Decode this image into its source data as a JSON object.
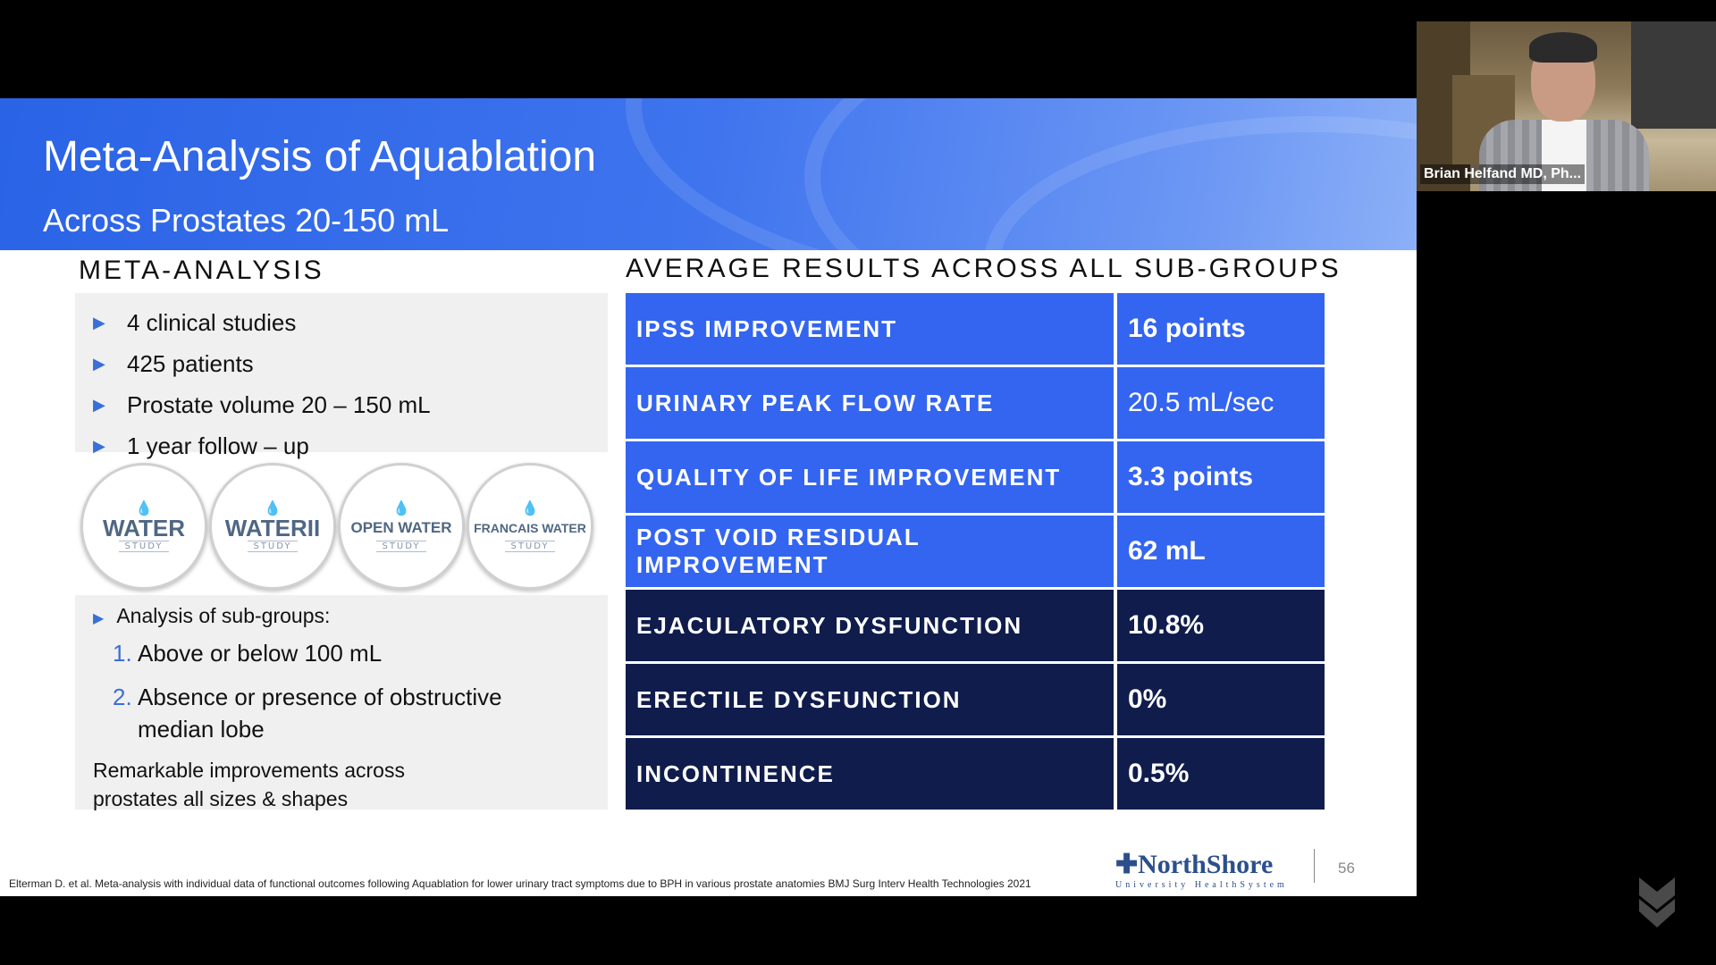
{
  "slide": {
    "title": "Meta-Analysis of Aquablation",
    "subtitle": "Across Prostates 20-150 mL",
    "left_heading": "META-ANALYSIS",
    "right_heading": "AVERAGE RESULTS ACROSS ALL SUB-GROUPS",
    "bullets": [
      "4 clinical studies",
      "425 patients",
      "Prostate volume 20 – 150 mL",
      "1 year follow – up"
    ],
    "logos": [
      {
        "name": "WATER",
        "study": "STUDY"
      },
      {
        "name": "WATERII",
        "study": "STUDY"
      },
      {
        "name": "OPEN WATER",
        "study": "STUDY"
      },
      {
        "name": "FRANCAIS WATER",
        "study": "STUDY"
      }
    ],
    "subgroups": {
      "intro": "Analysis of sub-groups:",
      "items": [
        {
          "num": "1.",
          "text": "Above or below 100 mL"
        },
        {
          "num": "2.",
          "text": "Absence or presence of obstructive median lobe"
        }
      ],
      "conclusion": "Remarkable improvements across prostates all sizes & shapes"
    },
    "results": [
      {
        "label": "IPSS IMPROVEMENT",
        "value": "16 points",
        "color": "#3465f0"
      },
      {
        "label": "URINARY PEAK FLOW RATE",
        "value": "20.5 mL/sec",
        "color": "#3465f0"
      },
      {
        "label": "QUALITY OF LIFE IMPROVEMENT",
        "value": "3.3 points",
        "color": "#3465f0"
      },
      {
        "label": "POST VOID RESIDUAL IMPROVEMENT",
        "value": "62 mL",
        "color": "#3465f0"
      },
      {
        "label": "EJACULATORY DYSFUNCTION",
        "value": "10.8%",
        "color": "#0f1c4c"
      },
      {
        "label": "ERECTILE DYSFUNCTION",
        "value": "0%",
        "color": "#0f1c4c"
      },
      {
        "label": "INCONTINENCE",
        "value": "0.5%",
        "color": "#0f1c4c"
      }
    ],
    "footnote": "Elterman D. et al. Meta-analysis with individual data of functional outcomes following Aquablation for lower urinary tract symptoms due to BPH in various prostate anatomies BMJ Surg Interv Health Technologies 2021",
    "brand_name": "NorthShore",
    "brand_sub": "University HealthSystem",
    "page_number": "56"
  },
  "participant": {
    "name": "Brian Helfand MD, Ph..."
  }
}
